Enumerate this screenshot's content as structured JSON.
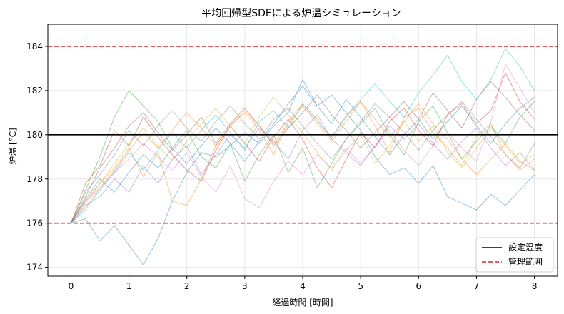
{
  "chart_data": {
    "type": "line",
    "title": "平均回帰型SDEによる炉温シミュレーション",
    "xlabel": "経過時間 [時間]",
    "ylabel": "炉温 [°C]",
    "xlim": [
      -0.4,
      8.4
    ],
    "ylim": [
      173.6,
      185.0
    ],
    "xticks": [
      0,
      1,
      2,
      3,
      4,
      5,
      6,
      7,
      8
    ],
    "yticks": [
      174,
      176,
      178,
      180,
      182,
      184
    ],
    "grid": true,
    "legend_position": "bottom-right",
    "reference_lines": [
      {
        "name": "設定温度",
        "y": 180,
        "color": "#000000",
        "style": "solid"
      },
      {
        "name": "管理範囲",
        "y": 176,
        "color": "#d62728",
        "style": "dashed"
      },
      {
        "name": "",
        "y": 184,
        "color": "#d62728",
        "style": "dashed"
      }
    ],
    "x": [
      0,
      0.25,
      0.5,
      0.75,
      1,
      1.25,
      1.5,
      1.75,
      2,
      2.25,
      2.5,
      2.75,
      3,
      3.25,
      3.5,
      3.75,
      4,
      4.25,
      4.5,
      4.75,
      5,
      5.25,
      5.5,
      5.75,
      6,
      6.25,
      6.5,
      6.75,
      7,
      7.25,
      7.5,
      7.75,
      8
    ],
    "series": [
      {
        "color": "#1f77b4",
        "values": [
          176.0,
          176.2,
          175.2,
          175.9,
          175.0,
          174.1,
          175.3,
          177.0,
          178.3,
          179.2,
          179.0,
          179.5,
          180.1,
          179.6,
          180.4,
          181.0,
          182.5,
          181.3,
          181.8,
          181.0,
          180.2,
          179.0,
          178.2,
          178.5,
          177.8,
          178.6,
          177.2,
          176.9,
          176.6,
          177.3,
          176.8,
          177.5,
          178.2
        ]
      },
      {
        "color": "#ff7f0e",
        "values": [
          176.1,
          177.0,
          177.8,
          178.5,
          179.4,
          178.1,
          179.2,
          177.0,
          176.8,
          178.0,
          179.5,
          180.4,
          181.0,
          180.2,
          179.1,
          180.6,
          181.4,
          180.7,
          179.8,
          180.9,
          181.5,
          180.4,
          179.2,
          180.8,
          181.2,
          180.1,
          179.4,
          178.6,
          179.9,
          180.5,
          179.1,
          178.4,
          178.9
        ]
      },
      {
        "color": "#2ca02c",
        "values": [
          176.0,
          177.5,
          179.0,
          180.8,
          182.0,
          181.3,
          180.6,
          179.4,
          180.2,
          179.0,
          178.5,
          179.6,
          177.9,
          179.1,
          180.0,
          178.3,
          179.4,
          177.6,
          178.7,
          179.8,
          180.5,
          181.2,
          180.0,
          179.1,
          180.6,
          181.3,
          180.1,
          178.9,
          179.7,
          180.4,
          179.6,
          180.8,
          181.5
        ]
      },
      {
        "color": "#d62728",
        "values": [
          176.0,
          177.8,
          178.6,
          180.2,
          179.5,
          180.8,
          179.9,
          179.1,
          178.4,
          177.9,
          179.3,
          180.4,
          179.6,
          178.8,
          179.9,
          180.7,
          179.8,
          178.5,
          177.6,
          178.9,
          180.1,
          179.4,
          180.6,
          181.2,
          180.2,
          179.5,
          180.9,
          181.4,
          180.5,
          181.1,
          182.8,
          181.5,
          180.7
        ]
      },
      {
        "color": "#9467bd",
        "values": [
          176.0,
          176.8,
          177.2,
          178.0,
          177.4,
          178.6,
          177.8,
          178.9,
          179.5,
          178.2,
          179.1,
          180.0,
          179.4,
          180.3,
          179.7,
          178.9,
          180.2,
          180.9,
          179.8,
          179.2,
          178.6,
          179.5,
          180.4,
          179.8,
          180.5,
          179.6,
          178.9,
          179.7,
          180.3,
          179.4,
          178.6,
          179.2,
          178.4
        ]
      },
      {
        "color": "#8c564b",
        "values": [
          176.0,
          177.2,
          178.5,
          179.4,
          180.4,
          181.0,
          180.1,
          179.3,
          180.0,
          180.8,
          179.6,
          180.5,
          181.2,
          180.4,
          179.5,
          180.3,
          181.0,
          181.8,
          180.9,
          180.2,
          179.4,
          180.1,
          180.8,
          181.5,
          180.7,
          181.9,
          181.1,
          180.3,
          181.6,
          182.4,
          181.7,
          180.9,
          180.2
        ]
      },
      {
        "color": "#e377c2",
        "values": [
          176.0,
          177.0,
          177.6,
          178.3,
          178.9,
          179.6,
          179.0,
          178.4,
          179.2,
          178.1,
          177.4,
          178.6,
          177.1,
          176.7,
          177.9,
          178.8,
          178.2,
          179.1,
          178.5,
          179.4,
          178.7,
          179.5,
          180.2,
          179.3,
          178.6,
          179.5,
          180.1,
          179.4,
          178.8,
          180.6,
          183.2,
          182.1,
          181.0
        ]
      },
      {
        "color": "#7f7f7f",
        "values": [
          176.0,
          177.4,
          178.2,
          179.1,
          180.2,
          179.5,
          180.4,
          181.1,
          180.3,
          179.7,
          180.6,
          181.3,
          180.5,
          179.8,
          180.7,
          181.2,
          180.4,
          179.6,
          178.9,
          179.8,
          180.6,
          181.4,
          180.8,
          180.1,
          179.3,
          180.2,
          180.9,
          181.5,
          180.7,
          179.9,
          179.1,
          178.5,
          179.6
        ]
      },
      {
        "color": "#bcbd22",
        "values": [
          176.0,
          176.9,
          177.8,
          178.7,
          179.6,
          180.3,
          179.5,
          178.8,
          179.7,
          180.5,
          181.2,
          180.4,
          179.6,
          180.8,
          181.7,
          180.9,
          180.1,
          179.2,
          178.4,
          179.3,
          180.0,
          178.7,
          179.5,
          180.6,
          179.7,
          180.4,
          179.2,
          178.5,
          179.4,
          180.3,
          179.5,
          178.7,
          179.1
        ]
      },
      {
        "color": "#17becf",
        "values": [
          176.0,
          176.6,
          177.5,
          178.3,
          179.2,
          178.4,
          179.3,
          180.1,
          179.4,
          180.2,
          180.9,
          180.1,
          179.3,
          180.6,
          181.1,
          180.3,
          181.4,
          180.6,
          179.9,
          180.8,
          181.6,
          182.3,
          181.5,
          180.8,
          181.9,
          182.7,
          183.6,
          182.4,
          181.6,
          182.5,
          183.9,
          183.1,
          182.0
        ]
      },
      {
        "color": "#1f77b4",
        "values": [
          176.0,
          177.1,
          178.0,
          177.4,
          178.3,
          179.1,
          178.5,
          179.4,
          178.7,
          179.5,
          180.3,
          179.6,
          178.8,
          179.7,
          180.5,
          181.4,
          182.2,
          181.3,
          180.5,
          181.6,
          180.8,
          179.9,
          179.1,
          180.0,
          180.7,
          179.8,
          180.6,
          181.3,
          180.4,
          179.6,
          180.5,
          181.2,
          181.7
        ]
      },
      {
        "color": "#ff7f0e",
        "values": [
          176.0,
          176.7,
          177.6,
          178.4,
          179.3,
          180.1,
          179.4,
          180.2,
          181.0,
          180.3,
          179.5,
          180.4,
          181.1,
          180.4,
          179.6,
          180.5,
          181.3,
          180.5,
          179.7,
          180.6,
          181.5,
          180.7,
          179.9,
          180.6,
          181.4,
          180.5,
          179.8,
          178.9,
          178.2,
          178.9,
          179.6,
          178.8,
          178.4
        ]
      }
    ]
  },
  "legend": {
    "items": [
      {
        "label": "設定温度",
        "color": "#000000",
        "style": "solid"
      },
      {
        "label": "管理範囲",
        "color": "#d62728",
        "style": "dashed"
      }
    ]
  }
}
